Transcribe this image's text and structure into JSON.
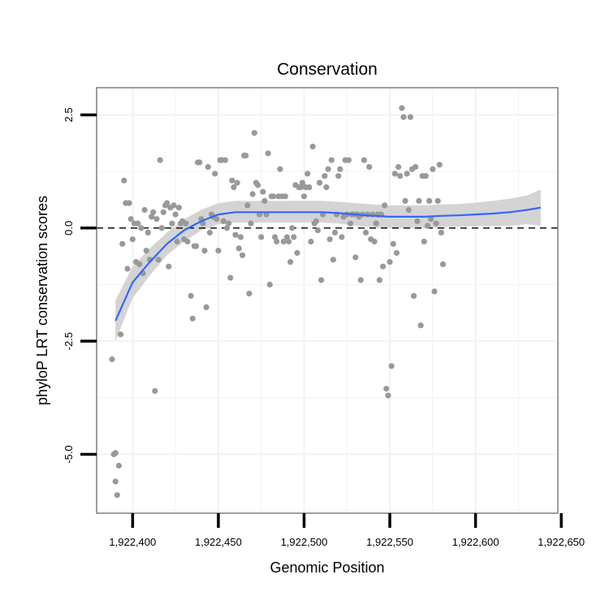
{
  "chart_data": {
    "type": "scatter",
    "title": "Conservation",
    "xlabel": "Genomic Position",
    "ylabel": "phyloP LRT conservation scores",
    "xlim": [
      1922379,
      1922648
    ],
    "ylim": [
      -6.3,
      3.1
    ],
    "x_ticks": [
      1922400,
      1922450,
      1922500,
      1922550,
      1922600,
      1922650
    ],
    "x_tick_labels": [
      "1,922,400",
      "1,922,450",
      "1,922,500",
      "1,922,550",
      "1,922,600",
      "1,922,650"
    ],
    "y_ticks": [
      -5.0,
      -2.5,
      0.0,
      2.5
    ],
    "y_tick_labels": [
      "-5.0",
      "-2.5",
      "0.0",
      "2.5"
    ],
    "reference_line": {
      "y": 0,
      "style": "dashed"
    },
    "colors": {
      "points": "#999999",
      "smooth": "#3366ff",
      "band": "#cccccc",
      "grid": "#f2f2f2",
      "border": "#7f7f7f"
    },
    "series": [
      {
        "name": "scores",
        "points": [
          [
            1922388,
            -2.9
          ],
          [
            1922389,
            -5.0
          ],
          [
            1922390,
            -4.97
          ],
          [
            1922390,
            -5.6
          ],
          [
            1922391,
            -5.9
          ],
          [
            1922392,
            -5.25
          ],
          [
            1922393,
            -2.35
          ],
          [
            1922394,
            -0.35
          ],
          [
            1922395,
            1.05
          ],
          [
            1922396,
            0.55
          ],
          [
            1922397,
            -0.9
          ],
          [
            1922398,
            0.55
          ],
          [
            1922399,
            0.2
          ],
          [
            1922400,
            -0.25
          ],
          [
            1922401,
            0.1
          ],
          [
            1922402,
            -0.75
          ],
          [
            1922403,
            0.1
          ],
          [
            1922404,
            -0.8
          ],
          [
            1922405,
            0.0
          ],
          [
            1922406,
            -1.0
          ],
          [
            1922407,
            0.4
          ],
          [
            1922408,
            -0.5
          ],
          [
            1922409,
            -0.1
          ],
          [
            1922410,
            -0.7
          ],
          [
            1922411,
            0.25
          ],
          [
            1922412,
            0.35
          ],
          [
            1922413,
            -3.6
          ],
          [
            1922414,
            0.2
          ],
          [
            1922415,
            -0.7
          ],
          [
            1922416,
            1.5
          ],
          [
            1922417,
            0.0
          ],
          [
            1922418,
            0.35
          ],
          [
            1922419,
            0.5
          ],
          [
            1922420,
            0.55
          ],
          [
            1922421,
            -0.85
          ],
          [
            1922422,
            0.45
          ],
          [
            1922423,
            0.1
          ],
          [
            1922424,
            0.5
          ],
          [
            1922425,
            0.3
          ],
          [
            1922426,
            -0.3
          ],
          [
            1922427,
            0.45
          ],
          [
            1922428,
            0.1
          ],
          [
            1922429,
            0.15
          ],
          [
            1922430,
            -0.25
          ],
          [
            1922431,
            0.1
          ],
          [
            1922432,
            -0.3
          ],
          [
            1922434,
            -1.5
          ],
          [
            1922435,
            -2.0
          ],
          [
            1922436,
            -0.4
          ],
          [
            1922437,
            -0.4
          ],
          [
            1922438,
            1.45
          ],
          [
            1922439,
            1.45
          ],
          [
            1922440,
            0.2
          ],
          [
            1922441,
            0.1
          ],
          [
            1922442,
            -0.5
          ],
          [
            1922443,
            -1.75
          ],
          [
            1922444,
            1.35
          ],
          [
            1922445,
            -0.1
          ],
          [
            1922446,
            0.3
          ],
          [
            1922447,
            0.25
          ],
          [
            1922448,
            1.2
          ],
          [
            1922449,
            0.2
          ],
          [
            1922450,
            -0.5
          ],
          [
            1922451,
            1.5
          ],
          [
            1922452,
            1.5
          ],
          [
            1922453,
            0.15
          ],
          [
            1922454,
            1.5
          ],
          [
            1922455,
            0.0
          ],
          [
            1922456,
            0.1
          ],
          [
            1922457,
            -1.1
          ],
          [
            1922458,
            1.05
          ],
          [
            1922459,
            0.9
          ],
          [
            1922460,
            -0.15
          ],
          [
            1922461,
            1.0
          ],
          [
            1922462,
            -0.45
          ],
          [
            1922463,
            -0.2
          ],
          [
            1922464,
            -0.6
          ],
          [
            1922465,
            1.6
          ],
          [
            1922466,
            1.6
          ],
          [
            1922467,
            0.5
          ],
          [
            1922468,
            -1.45
          ],
          [
            1922469,
            0.1
          ],
          [
            1922470,
            0.75
          ],
          [
            1922471,
            2.1
          ],
          [
            1922472,
            1.0
          ],
          [
            1922473,
            0.95
          ],
          [
            1922474,
            0.3
          ],
          [
            1922475,
            -0.2
          ],
          [
            1922476,
            0.8
          ],
          [
            1922477,
            0.6
          ],
          [
            1922478,
            0.3
          ],
          [
            1922479,
            1.65
          ],
          [
            1922480,
            -1.25
          ],
          [
            1922481,
            0.7
          ],
          [
            1922482,
            0.7
          ],
          [
            1922483,
            -0.2
          ],
          [
            1922484,
            -0.3
          ],
          [
            1922485,
            0.7
          ],
          [
            1922486,
            1.3
          ],
          [
            1922487,
            0.7
          ],
          [
            1922488,
            -0.3
          ],
          [
            1922489,
            0.7
          ],
          [
            1922490,
            -0.2
          ],
          [
            1922491,
            -0.3
          ],
          [
            1922492,
            -0.75
          ],
          [
            1922493,
            0.0
          ],
          [
            1922494,
            -0.2
          ],
          [
            1922495,
            0.95
          ],
          [
            1922496,
            -0.55
          ],
          [
            1922497,
            0.9
          ],
          [
            1922498,
            0.9
          ],
          [
            1922499,
            1.0
          ],
          [
            1922500,
            0.7
          ],
          [
            1922501,
            0.9
          ],
          [
            1922502,
            1.2
          ],
          [
            1922503,
            0.9
          ],
          [
            1922504,
            -0.3
          ],
          [
            1922505,
            1.8
          ],
          [
            1922506,
            0.1
          ],
          [
            1922507,
            0.15
          ],
          [
            1922508,
            -0.05
          ],
          [
            1922509,
            1.0
          ],
          [
            1922510,
            -1.15
          ],
          [
            1922511,
            0.3
          ],
          [
            1922512,
            1.15
          ],
          [
            1922513,
            0.9
          ],
          [
            1922514,
            1.3
          ],
          [
            1922515,
            -0.25
          ],
          [
            1922516,
            1.5
          ],
          [
            1922517,
            -0.7
          ],
          [
            1922518,
            -0.1
          ],
          [
            1922519,
            0.3
          ],
          [
            1922520,
            1.15
          ],
          [
            1922521,
            1.3
          ],
          [
            1922522,
            -0.2
          ],
          [
            1922523,
            0.25
          ],
          [
            1922524,
            1.5
          ],
          [
            1922525,
            0.3
          ],
          [
            1922526,
            1.5
          ],
          [
            1922527,
            0.1
          ],
          [
            1922528,
            0.3
          ],
          [
            1922529,
            0.3
          ],
          [
            1922530,
            -0.65
          ],
          [
            1922531,
            0.3
          ],
          [
            1922532,
            0.25
          ],
          [
            1922533,
            -1.15
          ],
          [
            1922534,
            0.3
          ],
          [
            1922535,
            1.5
          ],
          [
            1922536,
            -0.1
          ],
          [
            1922537,
            0.3
          ],
          [
            1922538,
            1.35
          ],
          [
            1922539,
            -0.25
          ],
          [
            1922540,
            0.3
          ],
          [
            1922541,
            -0.3
          ],
          [
            1922542,
            0.1
          ],
          [
            1922543,
            0.3
          ],
          [
            1922544,
            -1.15
          ],
          [
            1922545,
            0.3
          ],
          [
            1922546,
            -0.85
          ],
          [
            1922547,
            0.5
          ],
          [
            1922548,
            -3.55
          ],
          [
            1922549,
            -3.7
          ],
          [
            1922550,
            -0.75
          ],
          [
            1922551,
            -3.05
          ],
          [
            1922552,
            -0.35
          ],
          [
            1922553,
            1.2
          ],
          [
            1922554,
            -0.55
          ],
          [
            1922555,
            1.35
          ],
          [
            1922556,
            1.15
          ],
          [
            1922557,
            2.65
          ],
          [
            1922558,
            2.45
          ],
          [
            1922559,
            0.6
          ],
          [
            1922560,
            1.2
          ],
          [
            1922561,
            0.4
          ],
          [
            1922562,
            2.45
          ],
          [
            1922563,
            1.3
          ],
          [
            1922564,
            -1.5
          ],
          [
            1922565,
            1.35
          ],
          [
            1922566,
            0.15
          ],
          [
            1922567,
            0.6
          ],
          [
            1922568,
            -2.15
          ],
          [
            1922569,
            1.15
          ],
          [
            1922570,
            -0.3
          ],
          [
            1922571,
            1.15
          ],
          [
            1922572,
            0.05
          ],
          [
            1922573,
            0.6
          ],
          [
            1922574,
            0.2
          ],
          [
            1922575,
            1.3
          ],
          [
            1922576,
            -1.4
          ],
          [
            1922577,
            0.1
          ],
          [
            1922578,
            0.6
          ],
          [
            1922579,
            1.4
          ],
          [
            1922580,
            -0.1
          ],
          [
            1922581,
            -0.8
          ]
        ]
      }
    ],
    "smooth_curve": {
      "name": "loess",
      "x": [
        1922390,
        1922400,
        1922410,
        1922420,
        1922430,
        1922440,
        1922450,
        1922460,
        1922470,
        1922480,
        1922490,
        1922500,
        1922510,
        1922520,
        1922530,
        1922540,
        1922550,
        1922560,
        1922570,
        1922580,
        1922590,
        1922600,
        1922610,
        1922620,
        1922630,
        1922638
      ],
      "y": [
        -2.05,
        -1.2,
        -0.75,
        -0.35,
        -0.05,
        0.15,
        0.3,
        0.35,
        0.35,
        0.35,
        0.35,
        0.35,
        0.35,
        0.33,
        0.3,
        0.27,
        0.25,
        0.25,
        0.25,
        0.27,
        0.28,
        0.3,
        0.32,
        0.35,
        0.4,
        0.45
      ],
      "lower": [
        -2.5,
        -1.55,
        -1.05,
        -0.6,
        -0.3,
        -0.05,
        0.08,
        0.12,
        0.12,
        0.12,
        0.12,
        0.12,
        0.12,
        0.1,
        0.05,
        0.02,
        0.0,
        0.0,
        0.0,
        0.02,
        0.03,
        0.04,
        0.04,
        0.05,
        0.08,
        0.05
      ],
      "upper": [
        -1.6,
        -0.85,
        -0.45,
        -0.1,
        0.2,
        0.4,
        0.55,
        0.6,
        0.6,
        0.6,
        0.6,
        0.6,
        0.6,
        0.58,
        0.55,
        0.52,
        0.5,
        0.5,
        0.5,
        0.52,
        0.53,
        0.56,
        0.6,
        0.65,
        0.72,
        0.85
      ]
    }
  }
}
